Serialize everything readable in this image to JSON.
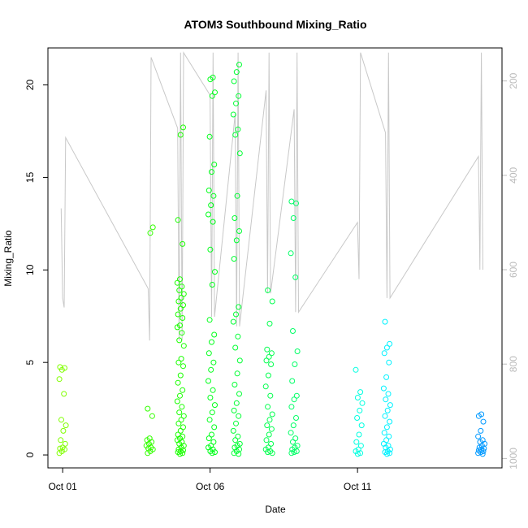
{
  "chart_data": {
    "type": "scatter",
    "title": "ATOM3 Southbound Mixing_Ratio",
    "xlabel": "Date",
    "ylabel": "Mixing_Ratio",
    "x_ticks": [
      "Oct 01",
      "Oct 06",
      "Oct 11"
    ],
    "x_tick_days": [
      1,
      6,
      11
    ],
    "xlim": [
      0.5,
      15.9
    ],
    "ylim": [
      -0.7,
      22
    ],
    "y_ticks": [
      0,
      5,
      10,
      15,
      20
    ],
    "y2_ticks": [
      200,
      400,
      600,
      800,
      1000
    ],
    "y2lim_reversed": [
      1020,
      130
    ],
    "series": [
      {
        "groups": [
          {
            "day": 1.0,
            "color": "#80ff00",
            "values": [
              0.1,
              0.2,
              0.3,
              0.35,
              0.4,
              0.6,
              0.8,
              1.3,
              1.6,
              1.9,
              3.3,
              4.1,
              4.6,
              4.7,
              4.75
            ]
          },
          {
            "day": 3.95,
            "color": "#33ff00",
            "values": [
              0.1,
              0.2,
              0.3,
              0.35,
              0.4,
              0.5,
              0.6,
              0.7,
              0.8,
              0.9,
              2.1,
              2.5,
              12.0,
              12.3
            ]
          },
          {
            "day": 5.0,
            "color": "#1aff00",
            "values": [
              0.05,
              0.1,
              0.15,
              0.2,
              0.25,
              0.3,
              0.4,
              0.5,
              0.6,
              0.7,
              0.8,
              0.9,
              1.0,
              1.1,
              1.3,
              1.5,
              1.7,
              1.9,
              2.1,
              2.3,
              2.6,
              2.9,
              3.2,
              3.5,
              3.9,
              4.3,
              4.8,
              5.0,
              5.2,
              5.9,
              6.2,
              6.6,
              6.9,
              7.0,
              7.4,
              7.6,
              7.9,
              8.1,
              8.3,
              8.5,
              8.7,
              8.9,
              9.1,
              9.3,
              9.5,
              11.4,
              12.7,
              17.3,
              17.7
            ]
          },
          {
            "day": 6.05,
            "color": "#00ff1a",
            "values": [
              0.1,
              0.15,
              0.2,
              0.3,
              0.4,
              0.5,
              0.7,
              0.9,
              1.1,
              1.5,
              1.9,
              2.3,
              2.7,
              3.1,
              3.5,
              4.0,
              4.6,
              5.0,
              5.5,
              6.1,
              6.5,
              7.3,
              9.2,
              9.9,
              11.1,
              12.6,
              13.0,
              13.5,
              14.0,
              14.3,
              15.3,
              15.7,
              17.2,
              19.4,
              19.6,
              20.3,
              20.4
            ]
          },
          {
            "day": 6.9,
            "color": "#00ff33",
            "values": [
              0.05,
              0.1,
              0.2,
              0.3,
              0.4,
              0.5,
              0.6,
              0.8,
              1.0,
              1.3,
              1.7,
              2.1,
              2.4,
              2.8,
              3.3,
              3.8,
              4.4,
              5.1,
              5.8,
              6.4,
              7.2,
              7.6,
              8.0,
              10.6,
              11.6,
              12.1,
              12.8,
              14.0,
              16.3,
              17.3,
              17.6,
              18.4,
              19.0,
              19.4,
              20.2,
              20.7,
              21.1
            ]
          },
          {
            "day": 8.0,
            "color": "#00ff4d",
            "values": [
              0.1,
              0.15,
              0.2,
              0.3,
              0.4,
              0.6,
              0.8,
              1.1,
              1.4,
              1.6,
              1.9,
              2.2,
              2.6,
              3.2,
              3.7,
              4.3,
              4.9,
              5.1,
              5.3,
              5.5,
              5.7,
              7.1,
              8.3,
              8.9
            ]
          },
          {
            "day": 8.85,
            "color": "#00ff66",
            "values": [
              0.1,
              0.15,
              0.2,
              0.3,
              0.4,
              0.5,
              0.7,
              0.9,
              1.2,
              1.6,
              2.0,
              2.6,
              3.0,
              3.2,
              4.0,
              4.9,
              5.6,
              6.7,
              9.6,
              10.9,
              12.8,
              13.6,
              13.7
            ]
          },
          {
            "day": 11.05,
            "color": "#00ffe0",
            "values": [
              0.05,
              0.1,
              0.2,
              0.3,
              0.5,
              0.7,
              1.1,
              1.6,
              2.0,
              2.4,
              2.8,
              3.1,
              3.4,
              4.6
            ]
          },
          {
            "day": 12.0,
            "color": "#00f2ff",
            "values": [
              0.05,
              0.1,
              0.15,
              0.2,
              0.3,
              0.4,
              0.5,
              0.6,
              0.8,
              1.0,
              1.2,
              1.5,
              1.8,
              2.1,
              2.4,
              2.7,
              3.0,
              3.3,
              3.6,
              4.2,
              5.0,
              5.5,
              5.8,
              6.0,
              7.2
            ]
          },
          {
            "day": 15.2,
            "color": "#0099ff",
            "values": [
              0.05,
              0.1,
              0.15,
              0.2,
              0.25,
              0.3,
              0.35,
              0.4,
              0.5,
              0.6,
              0.7,
              0.8,
              1.0,
              1.3,
              1.8,
              2.1,
              2.2
            ]
          }
        ]
      }
    ],
    "secondary_line": {
      "axis": "right",
      "color": "#c8c8c8",
      "points": [
        [
          0.95,
          470
        ],
        [
          1.0,
          660
        ],
        [
          1.05,
          680
        ],
        [
          1.1,
          320
        ],
        [
          3.9,
          640
        ],
        [
          3.95,
          750
        ],
        [
          4.0,
          150
        ],
        [
          4.9,
          300
        ],
        [
          4.95,
          750
        ],
        [
          5.0,
          140
        ],
        [
          5.05,
          750
        ],
        [
          5.1,
          140
        ],
        [
          6.0,
          230
        ],
        [
          6.05,
          700
        ],
        [
          6.1,
          140
        ],
        [
          6.15,
          700
        ],
        [
          6.85,
          270
        ],
        [
          6.9,
          720
        ],
        [
          6.95,
          140
        ],
        [
          7.0,
          720
        ],
        [
          7.9,
          220
        ],
        [
          7.95,
          650
        ],
        [
          8.0,
          140
        ],
        [
          8.05,
          650
        ],
        [
          8.85,
          260
        ],
        [
          8.9,
          690
        ],
        [
          8.95,
          140
        ],
        [
          9.0,
          690
        ],
        [
          11.0,
          500
        ],
        [
          11.05,
          620
        ],
        [
          11.1,
          140
        ],
        [
          11.95,
          310
        ],
        [
          12.0,
          660
        ],
        [
          12.05,
          140
        ],
        [
          12.1,
          660
        ],
        [
          15.1,
          360
        ],
        [
          15.15,
          600
        ],
        [
          15.2,
          140
        ],
        [
          15.25,
          600
        ]
      ]
    }
  }
}
